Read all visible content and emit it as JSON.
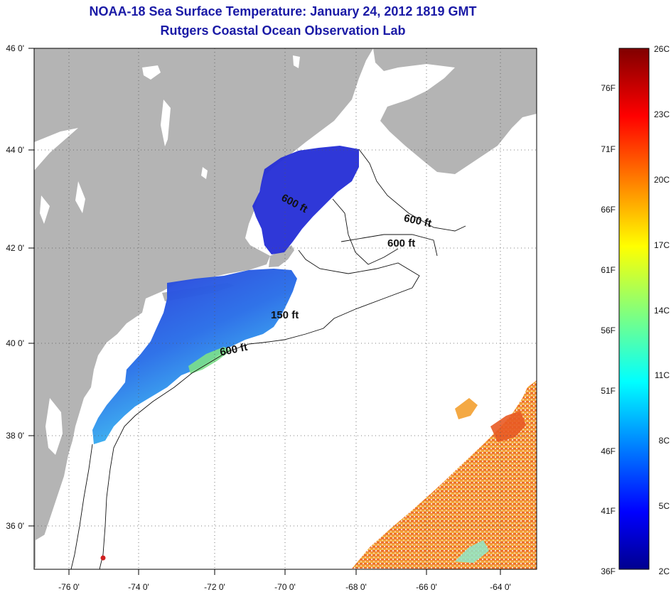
{
  "header": {
    "title": "NOAA-18 Sea Surface Temperature:  January 24, 2012 1819 GMT",
    "subtitle": "Rutgers Coastal Ocean Observation Lab"
  },
  "map": {
    "lon_range": [
      -77,
      -63
    ],
    "lat_range": [
      35,
      46
    ],
    "lon_ticks": [
      "-76 0'",
      "-74 0'",
      "-72 0'",
      "-70 0'",
      "-68 0'",
      "-66 0'",
      "-64 0'"
    ],
    "lat_ticks": [
      "46 0'",
      "44 0'",
      "42 0'",
      "40 0'",
      "38 0'",
      "36 0'"
    ],
    "grid": "dotted",
    "colors": {
      "land": "#b4b4b4",
      "ocean_no_data": "#ffffff",
      "contour": "#111111"
    },
    "contour_labels": [
      "600 ft",
      "600 ft",
      "600 ft",
      "150 ft",
      "600 ft"
    ]
  },
  "colorbar": {
    "fahrenheit_labels": [
      "76F",
      "71F",
      "66F",
      "61F",
      "56F",
      "51F",
      "46F",
      "41F",
      "36F"
    ],
    "celsius_labels": [
      "26C",
      "23C",
      "20C",
      "17C",
      "14C",
      "11C",
      "8C",
      "5C",
      "2C"
    ],
    "range_c": [
      2,
      26
    ]
  }
}
